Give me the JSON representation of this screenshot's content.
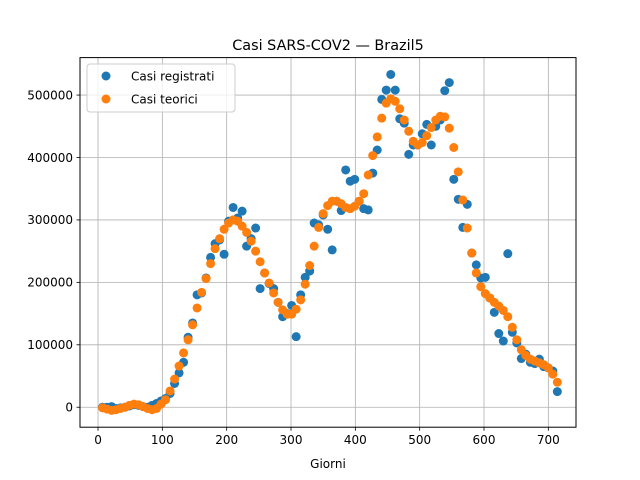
{
  "chart_data": {
    "type": "scatter",
    "title": "Casi SARS-COV2 — Brazil5",
    "xlabel": "Giorni",
    "ylabel": "",
    "xlim": [
      -28,
      743
    ],
    "ylim": [
      -32000,
      560000
    ],
    "xticks": [
      0,
      100,
      200,
      300,
      400,
      500,
      600,
      700
    ],
    "yticks": [
      0,
      100000,
      200000,
      300000,
      400000,
      500000
    ],
    "grid": true,
    "legend_position": "top-left",
    "series": [
      {
        "name": "Casi registrati",
        "color": "#1f77b4",
        "points": [
          [
            7,
            0
          ],
          [
            14,
            0
          ],
          [
            21,
            1000
          ],
          [
            28,
            -2000
          ],
          [
            35,
            -1000
          ],
          [
            42,
            0
          ],
          [
            49,
            2000
          ],
          [
            56,
            4000
          ],
          [
            63,
            3000
          ],
          [
            70,
            1000
          ],
          [
            77,
            0
          ],
          [
            84,
            3000
          ],
          [
            91,
            6000
          ],
          [
            98,
            10000
          ],
          [
            105,
            14000
          ],
          [
            112,
            22000
          ],
          [
            119,
            38000
          ],
          [
            126,
            55000
          ],
          [
            133,
            72000
          ],
          [
            140,
            112000
          ],
          [
            147,
            135000
          ],
          [
            154,
            180000
          ],
          [
            161,
            183000
          ],
          [
            168,
            207000
          ],
          [
            175,
            240000
          ],
          [
            182,
            262000
          ],
          [
            189,
            268000
          ],
          [
            196,
            245000
          ],
          [
            203,
            298000
          ],
          [
            210,
            320000
          ],
          [
            217,
            303000
          ],
          [
            224,
            314000
          ],
          [
            231,
            258000
          ],
          [
            238,
            270000
          ],
          [
            245,
            287000
          ],
          [
            252,
            190000
          ],
          [
            259,
            215000
          ],
          [
            266,
            198000
          ],
          [
            273,
            190000
          ],
          [
            280,
            168000
          ],
          [
            287,
            145000
          ],
          [
            294,
            150000
          ],
          [
            301,
            163000
          ],
          [
            308,
            113000
          ],
          [
            315,
            180000
          ],
          [
            322,
            208000
          ],
          [
            329,
            218000
          ],
          [
            336,
            295000
          ],
          [
            343,
            292000
          ],
          [
            350,
            308000
          ],
          [
            357,
            285000
          ],
          [
            364,
            252000
          ],
          [
            371,
            330000
          ],
          [
            378,
            315000
          ],
          [
            385,
            380000
          ],
          [
            392,
            362000
          ],
          [
            399,
            365000
          ],
          [
            406,
            330000
          ],
          [
            413,
            318000
          ],
          [
            420,
            316000
          ],
          [
            427,
            375000
          ],
          [
            434,
            412000
          ],
          [
            441,
            493000
          ],
          [
            448,
            508000
          ],
          [
            455,
            533000
          ],
          [
            462,
            508000
          ],
          [
            469,
            462000
          ],
          [
            476,
            455000
          ],
          [
            483,
            405000
          ],
          [
            490,
            420000
          ],
          [
            497,
            420000
          ],
          [
            504,
            438000
          ],
          [
            511,
            453000
          ],
          [
            518,
            420000
          ],
          [
            525,
            450000
          ],
          [
            532,
            460000
          ],
          [
            539,
            507000
          ],
          [
            546,
            520000
          ],
          [
            553,
            365000
          ],
          [
            560,
            333000
          ],
          [
            567,
            288000
          ],
          [
            574,
            325000
          ],
          [
            581,
            247000
          ],
          [
            588,
            228000
          ],
          [
            595,
            207000
          ],
          [
            602,
            208000
          ],
          [
            609,
            175000
          ],
          [
            616,
            152000
          ],
          [
            623,
            118000
          ],
          [
            630,
            106000
          ],
          [
            637,
            246000
          ],
          [
            644,
            120000
          ],
          [
            651,
            103000
          ],
          [
            658,
            78000
          ],
          [
            665,
            85000
          ],
          [
            672,
            72000
          ],
          [
            679,
            70000
          ],
          [
            686,
            77000
          ],
          [
            693,
            65000
          ],
          [
            700,
            63000
          ],
          [
            707,
            58000
          ],
          [
            714,
            25000
          ]
        ]
      },
      {
        "name": "Casi teorici",
        "color": "#ff7f0e",
        "points": [
          [
            7,
            -1000
          ],
          [
            14,
            -3000
          ],
          [
            21,
            -5000
          ],
          [
            28,
            -4000
          ],
          [
            35,
            -2000
          ],
          [
            42,
            0
          ],
          [
            49,
            3000
          ],
          [
            56,
            5000
          ],
          [
            63,
            4000
          ],
          [
            70,
            1000
          ],
          [
            77,
            -2000
          ],
          [
            84,
            -4000
          ],
          [
            91,
            -2000
          ],
          [
            98,
            5000
          ],
          [
            105,
            12000
          ],
          [
            112,
            26000
          ],
          [
            119,
            45000
          ],
          [
            126,
            66000
          ],
          [
            133,
            87000
          ],
          [
            140,
            108000
          ],
          [
            147,
            132000
          ],
          [
            154,
            159000
          ],
          [
            161,
            184000
          ],
          [
            168,
            206000
          ],
          [
            175,
            230000
          ],
          [
            182,
            254000
          ],
          [
            189,
            270000
          ],
          [
            196,
            285000
          ],
          [
            203,
            295000
          ],
          [
            210,
            300000
          ],
          [
            217,
            298000
          ],
          [
            224,
            290000
          ],
          [
            231,
            280000
          ],
          [
            238,
            266000
          ],
          [
            245,
            250000
          ],
          [
            252,
            233000
          ],
          [
            259,
            215000
          ],
          [
            266,
            199000
          ],
          [
            273,
            183000
          ],
          [
            280,
            168000
          ],
          [
            287,
            156000
          ],
          [
            294,
            149000
          ],
          [
            301,
            149000
          ],
          [
            308,
            157000
          ],
          [
            315,
            172000
          ],
          [
            322,
            197000
          ],
          [
            329,
            227000
          ],
          [
            336,
            258000
          ],
          [
            343,
            288000
          ],
          [
            350,
            310000
          ],
          [
            357,
            323000
          ],
          [
            364,
            330000
          ],
          [
            371,
            330000
          ],
          [
            378,
            326000
          ],
          [
            385,
            320000
          ],
          [
            392,
            318000
          ],
          [
            399,
            322000
          ],
          [
            406,
            330000
          ],
          [
            413,
            342000
          ],
          [
            420,
            372000
          ],
          [
            427,
            403000
          ],
          [
            434,
            433000
          ],
          [
            441,
            463000
          ],
          [
            448,
            487000
          ],
          [
            455,
            494000
          ],
          [
            462,
            490000
          ],
          [
            469,
            478000
          ],
          [
            476,
            460000
          ],
          [
            483,
            442000
          ],
          [
            490,
            426000
          ],
          [
            497,
            420000
          ],
          [
            504,
            424000
          ],
          [
            511,
            435000
          ],
          [
            518,
            448000
          ],
          [
            525,
            460000
          ],
          [
            532,
            466000
          ],
          [
            539,
            465000
          ],
          [
            546,
            447000
          ],
          [
            553,
            416000
          ],
          [
            560,
            377000
          ],
          [
            567,
            332000
          ],
          [
            574,
            287000
          ],
          [
            581,
            247000
          ],
          [
            588,
            215000
          ],
          [
            595,
            193000
          ],
          [
            602,
            182000
          ],
          [
            609,
            175000
          ],
          [
            616,
            168000
          ],
          [
            623,
            162000
          ],
          [
            630,
            155000
          ],
          [
            637,
            145000
          ],
          [
            644,
            128000
          ],
          [
            651,
            108000
          ],
          [
            658,
            92000
          ],
          [
            665,
            83000
          ],
          [
            672,
            77000
          ],
          [
            679,
            74000
          ],
          [
            686,
            71000
          ],
          [
            693,
            68000
          ],
          [
            700,
            63000
          ],
          [
            707,
            53000
          ],
          [
            714,
            40000
          ]
        ]
      }
    ]
  }
}
